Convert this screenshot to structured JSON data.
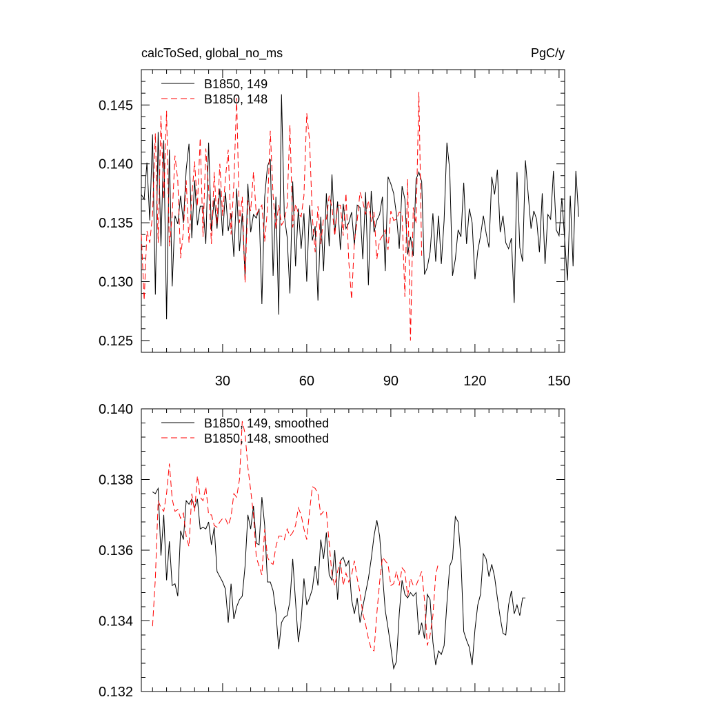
{
  "chart_data": [
    {
      "type": "line",
      "title_left": "calcToSed, global_no_ms",
      "title_right": "PgC/y",
      "xlim": [
        1,
        152
      ],
      "ylim": [
        0.124,
        0.148
      ],
      "xticks": [
        30,
        60,
        90,
        120,
        150
      ],
      "xtick_labels": [
        "30",
        "60",
        "90",
        "120",
        "150"
      ],
      "yticks": [
        0.125,
        0.13,
        0.135,
        0.14,
        0.145
      ],
      "ytick_labels": [
        "0.125",
        "0.130",
        "0.135",
        "0.140",
        "0.145"
      ],
      "legend_position": "top-left",
      "series": [
        {
          "name": "B1850, 149",
          "color": "#000000",
          "dash": "solid",
          "x_start": 1,
          "values": [
            0.1374,
            0.137,
            0.1401,
            0.1352,
            0.1425,
            0.1289,
            0.1427,
            0.133,
            0.142,
            0.1268,
            0.1412,
            0.1296,
            0.1356,
            0.1349,
            0.1373,
            0.135,
            0.1395,
            0.1417,
            0.1337,
            0.1386,
            0.1348,
            0.1364,
            0.1364,
            0.1332,
            0.1418,
            0.1343,
            0.1371,
            0.1345,
            0.1379,
            0.1339,
            0.1376,
            0.1343,
            0.1358,
            0.1321,
            0.1379,
            0.1326,
            0.1358,
            0.1304,
            0.1383,
            0.1342,
            0.1357,
            0.1354,
            0.1362,
            0.1281,
            0.1372,
            0.1398,
            0.1404,
            0.1305,
            0.1372,
            0.1272,
            0.1459,
            0.1356,
            0.1338,
            0.129,
            0.1385,
            0.1313,
            0.1362,
            0.1328,
            0.1358,
            0.13,
            0.1365,
            0.1335,
            0.1347,
            0.1284,
            0.1355,
            0.1309,
            0.1375,
            0.133,
            0.1391,
            0.134,
            0.1368,
            0.1327,
            0.1366,
            0.1345,
            0.135,
            0.1359,
            0.1331,
            0.1365,
            0.1363,
            0.1319,
            0.1376,
            0.1297,
            0.1377,
            0.1342,
            0.1352,
            0.1357,
            0.1372,
            0.1309,
            0.1389,
            0.1383,
            0.1375,
            0.1357,
            0.1328,
            0.1381,
            0.137,
            0.1323,
            0.1338,
            0.1322,
            0.1387,
            0.1393,
            0.1385,
            0.1306,
            0.1312,
            0.1325,
            0.1358,
            0.1317,
            0.1356,
            0.1315,
            0.1352,
            0.1418,
            0.1395,
            0.1305,
            0.1319,
            0.1344,
            0.1338,
            0.1384,
            0.1332,
            0.1362,
            0.135,
            0.1302,
            0.1326,
            0.1339,
            0.1356,
            0.1341,
            0.1329,
            0.1389,
            0.1374,
            0.1395,
            0.1342,
            0.1356,
            0.1333,
            0.1328,
            0.1337,
            0.1282,
            0.1393,
            0.1329,
            0.1317,
            0.1403,
            0.1374,
            0.1345,
            0.136,
            0.1353,
            0.1325,
            0.1375,
            0.1315,
            0.1357,
            0.1353,
            0.1394,
            0.1344,
            0.1339,
            0.1371,
            0.1336,
            0.1301,
            0.1373,
            0.1313,
            0.1394,
            0.1355
          ]
        },
        {
          "name": "B1850, 148",
          "color": "#ff0000",
          "dash": "dashed",
          "x_start": 1,
          "values": [
            0.134,
            0.1284,
            0.1343,
            0.1333,
            0.1357,
            0.1426,
            0.1333,
            0.1441,
            0.137,
            0.1445,
            0.133,
            0.1356,
            0.1407,
            0.1386,
            0.132,
            0.1343,
            0.1386,
            0.1333,
            0.1372,
            0.1402,
            0.1364,
            0.1422,
            0.1338,
            0.1413,
            0.1379,
            0.1332,
            0.1393,
            0.1349,
            0.14,
            0.1356,
            0.1388,
            0.1412,
            0.134,
            0.1383,
            0.1456,
            0.135,
            0.1372,
            0.1299,
            0.1369,
            0.136,
            0.1393,
            0.1357,
            0.1361,
            0.1365,
            0.1334,
            0.1362,
            0.1428,
            0.1373,
            0.1345,
            0.1365,
            0.1348,
            0.1352,
            0.1364,
            0.1433,
            0.1346,
            0.1366,
            0.1358,
            0.1355,
            0.1373,
            0.1443,
            0.142,
            0.1355,
            0.1325,
            0.1364,
            0.1332,
            0.1354,
            0.1353,
            0.1373,
            0.1363,
            0.1339,
            0.1365,
            0.1365,
            0.1339,
            0.1375,
            0.1317,
            0.1285,
            0.1334,
            0.1352,
            0.1376,
            0.1368,
            0.1357,
            0.1369,
            0.1351,
            0.1359,
            0.1319,
            0.1335,
            0.1339,
            0.1344,
            0.1327,
            0.136,
            0.1352,
            0.1353,
            0.1359,
            0.1358,
            0.1287,
            0.1387,
            0.125,
            0.1363,
            0.1349,
            0.1461,
            0.1322
          ]
        }
      ]
    },
    {
      "type": "line",
      "xlim": [
        1,
        152
      ],
      "ylim": [
        0.132,
        0.14
      ],
      "yticks": [
        0.132,
        0.134,
        0.136,
        0.138,
        0.14
      ],
      "ytick_labels": [
        "0.132",
        "0.134",
        "0.136",
        "0.138",
        "0.140"
      ],
      "legend_position": "top-left",
      "series": [
        {
          "name": "B1850, 149, smoothed",
          "color": "#000000",
          "dash": "solid",
          "x_start": 5,
          "values": [
            0.13765,
            0.1376,
            0.13775,
            0.13585,
            0.137,
            0.13515,
            0.13625,
            0.135,
            0.13505,
            0.1347,
            0.13655,
            0.1363,
            0.1374,
            0.1373,
            0.13745,
            0.1372,
            0.13745,
            0.1366,
            0.13665,
            0.1366,
            0.1368,
            0.13615,
            0.13665,
            0.1354,
            0.13525,
            0.1351,
            0.1349,
            0.13395,
            0.13505,
            0.13405,
            0.1344,
            0.1346,
            0.1347,
            0.13555,
            0.137,
            0.1366,
            0.13725,
            0.1362,
            0.13615,
            0.1375,
            0.1367,
            0.1351,
            0.1351,
            0.13485,
            0.13425,
            0.1332,
            0.13395,
            0.1341,
            0.13415,
            0.13455,
            0.13575,
            0.13455,
            0.1334,
            0.134,
            0.1352,
            0.13445,
            0.13465,
            0.1349,
            0.13555,
            0.135,
            0.1363,
            0.13575,
            0.1365,
            0.1353,
            0.13515,
            0.136,
            0.1346,
            0.1357,
            0.1358,
            0.13555,
            0.1357,
            0.1346,
            0.1342,
            0.13465,
            0.13395,
            0.1344,
            0.1348,
            0.1352,
            0.13575,
            0.1364,
            0.13685,
            0.1364,
            0.13535,
            0.1343,
            0.1338,
            0.13325,
            0.13265,
            0.13285,
            0.1342,
            0.13515,
            0.13475,
            0.13465,
            0.1348,
            0.1347,
            0.1348,
            0.1336,
            0.13395,
            0.1335,
            0.13475,
            0.1346,
            0.1334,
            0.13275,
            0.13315,
            0.13305,
            0.1333,
            0.1345,
            0.13555,
            0.13575,
            0.13695,
            0.1368,
            0.13575,
            0.1337,
            0.13345,
            0.13325,
            0.13275,
            0.13375,
            0.13445,
            0.13475,
            0.1359,
            0.13575,
            0.13525,
            0.1356,
            0.13525,
            0.13465,
            0.1341,
            0.13365,
            0.1336,
            0.13445,
            0.13485,
            0.1342,
            0.13445,
            0.13415,
            0.13465,
            0.13465
          ]
        },
        {
          "name": "B1850, 148, smoothed",
          "color": "#ff0000",
          "dash": "dashed",
          "x_start": 5,
          "values": [
            0.13385,
            0.1352,
            0.1374,
            0.1372,
            0.1371,
            0.1376,
            0.13845,
            0.13745,
            0.1371,
            0.13715,
            0.1369,
            0.13705,
            0.1364,
            0.1361,
            0.1376,
            0.1371,
            0.1381,
            0.1375,
            0.1374,
            0.1378,
            0.137,
            0.137,
            0.1367,
            0.13665,
            0.1368,
            0.1369,
            0.1369,
            0.1367,
            0.13695,
            0.1376,
            0.1375,
            0.138,
            0.13965,
            0.1393,
            0.13835,
            0.1377,
            0.137,
            0.1358,
            0.13555,
            0.1353,
            0.1366,
            0.1358,
            0.13565,
            0.1356,
            0.1361,
            0.1364,
            0.1364,
            0.1363,
            0.1366,
            0.1364,
            0.1365,
            0.1367,
            0.1372,
            0.137,
            0.1366,
            0.1363,
            0.1371,
            0.1378,
            0.13775,
            0.1376,
            0.137,
            0.1371,
            0.1371,
            0.1362,
            0.1353,
            0.135,
            0.1354,
            0.1357,
            0.135,
            0.13535,
            0.1351,
            0.1353,
            0.1357,
            0.1352,
            0.1348,
            0.1342,
            0.1339,
            0.1335,
            0.1332,
            0.13315,
            0.1342,
            0.1351,
            0.1358,
            0.1357,
            0.1356,
            0.135,
            0.13505,
            0.1354,
            0.135,
            0.1355,
            0.1354,
            0.1347,
            0.1352,
            0.135,
            0.135,
            0.1352,
            0.1354,
            0.1346,
            0.1333,
            0.1336,
            0.13415,
            0.1353,
            0.13565
          ]
        }
      ]
    }
  ]
}
